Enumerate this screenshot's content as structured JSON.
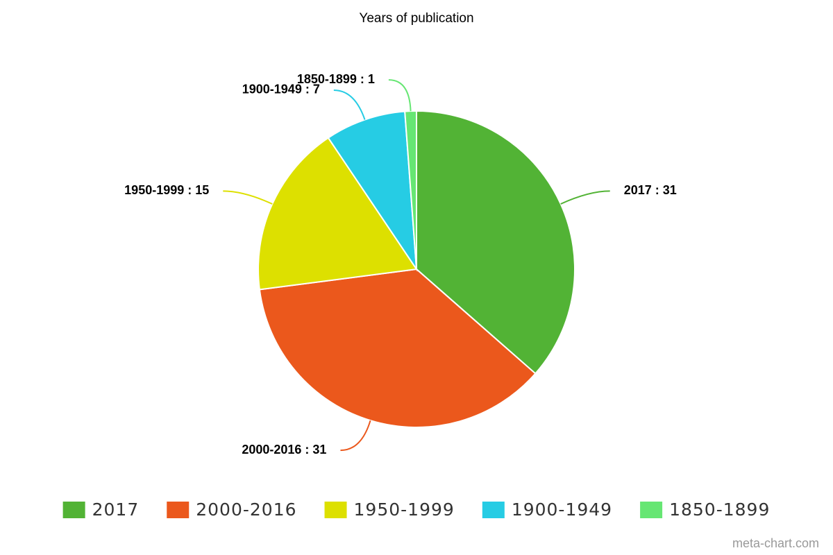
{
  "chart_data": {
    "type": "pie",
    "title": "Years of publication",
    "categories": [
      "2017",
      "2000-2016",
      "1950-1999",
      "1900-1949",
      "1850-1899"
    ],
    "values": [
      31,
      31,
      15,
      7,
      1
    ],
    "value_labels": [
      "2017 : 31",
      "2000-2016 : 31",
      "1950-1999 : 15",
      "1900-1949 : 7",
      "1850-1899 : 1"
    ],
    "colors": [
      "#52b335",
      "#eb581c",
      "#dde000",
      "#26cce4",
      "#66e673"
    ],
    "credit": "meta-chart.com"
  }
}
